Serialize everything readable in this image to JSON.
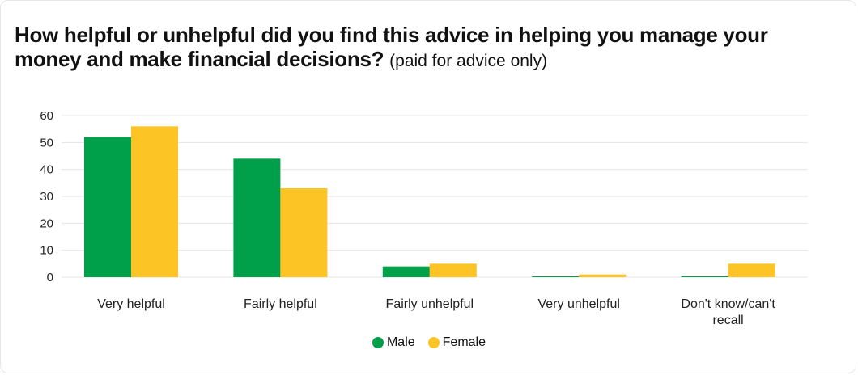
{
  "title": {
    "main": "How helpful or unhelpful did you find this advice in helping you manage your money and make financial decisions?",
    "note": "(paid for advice only)"
  },
  "colors": {
    "male": "#00a04a",
    "female": "#fcc425",
    "grid": "#e4e4e4"
  },
  "chart_data": {
    "type": "bar",
    "categories": [
      "Very helpful",
      "Fairly helpful",
      "Fairly unhelpful",
      "Very unhelpful",
      "Don't know/can't recall"
    ],
    "series": [
      {
        "name": "Male",
        "values": [
          52,
          44,
          4,
          0.2,
          0.2
        ]
      },
      {
        "name": "Female",
        "values": [
          56,
          33,
          5,
          1,
          5
        ]
      }
    ],
    "ylim": [
      0,
      60
    ],
    "yticks": [
      0,
      10,
      20,
      30,
      40,
      50,
      60
    ],
    "grid": true,
    "legend": "bottom-center"
  },
  "legend": {
    "male_label": "Male",
    "female_label": "Female"
  }
}
